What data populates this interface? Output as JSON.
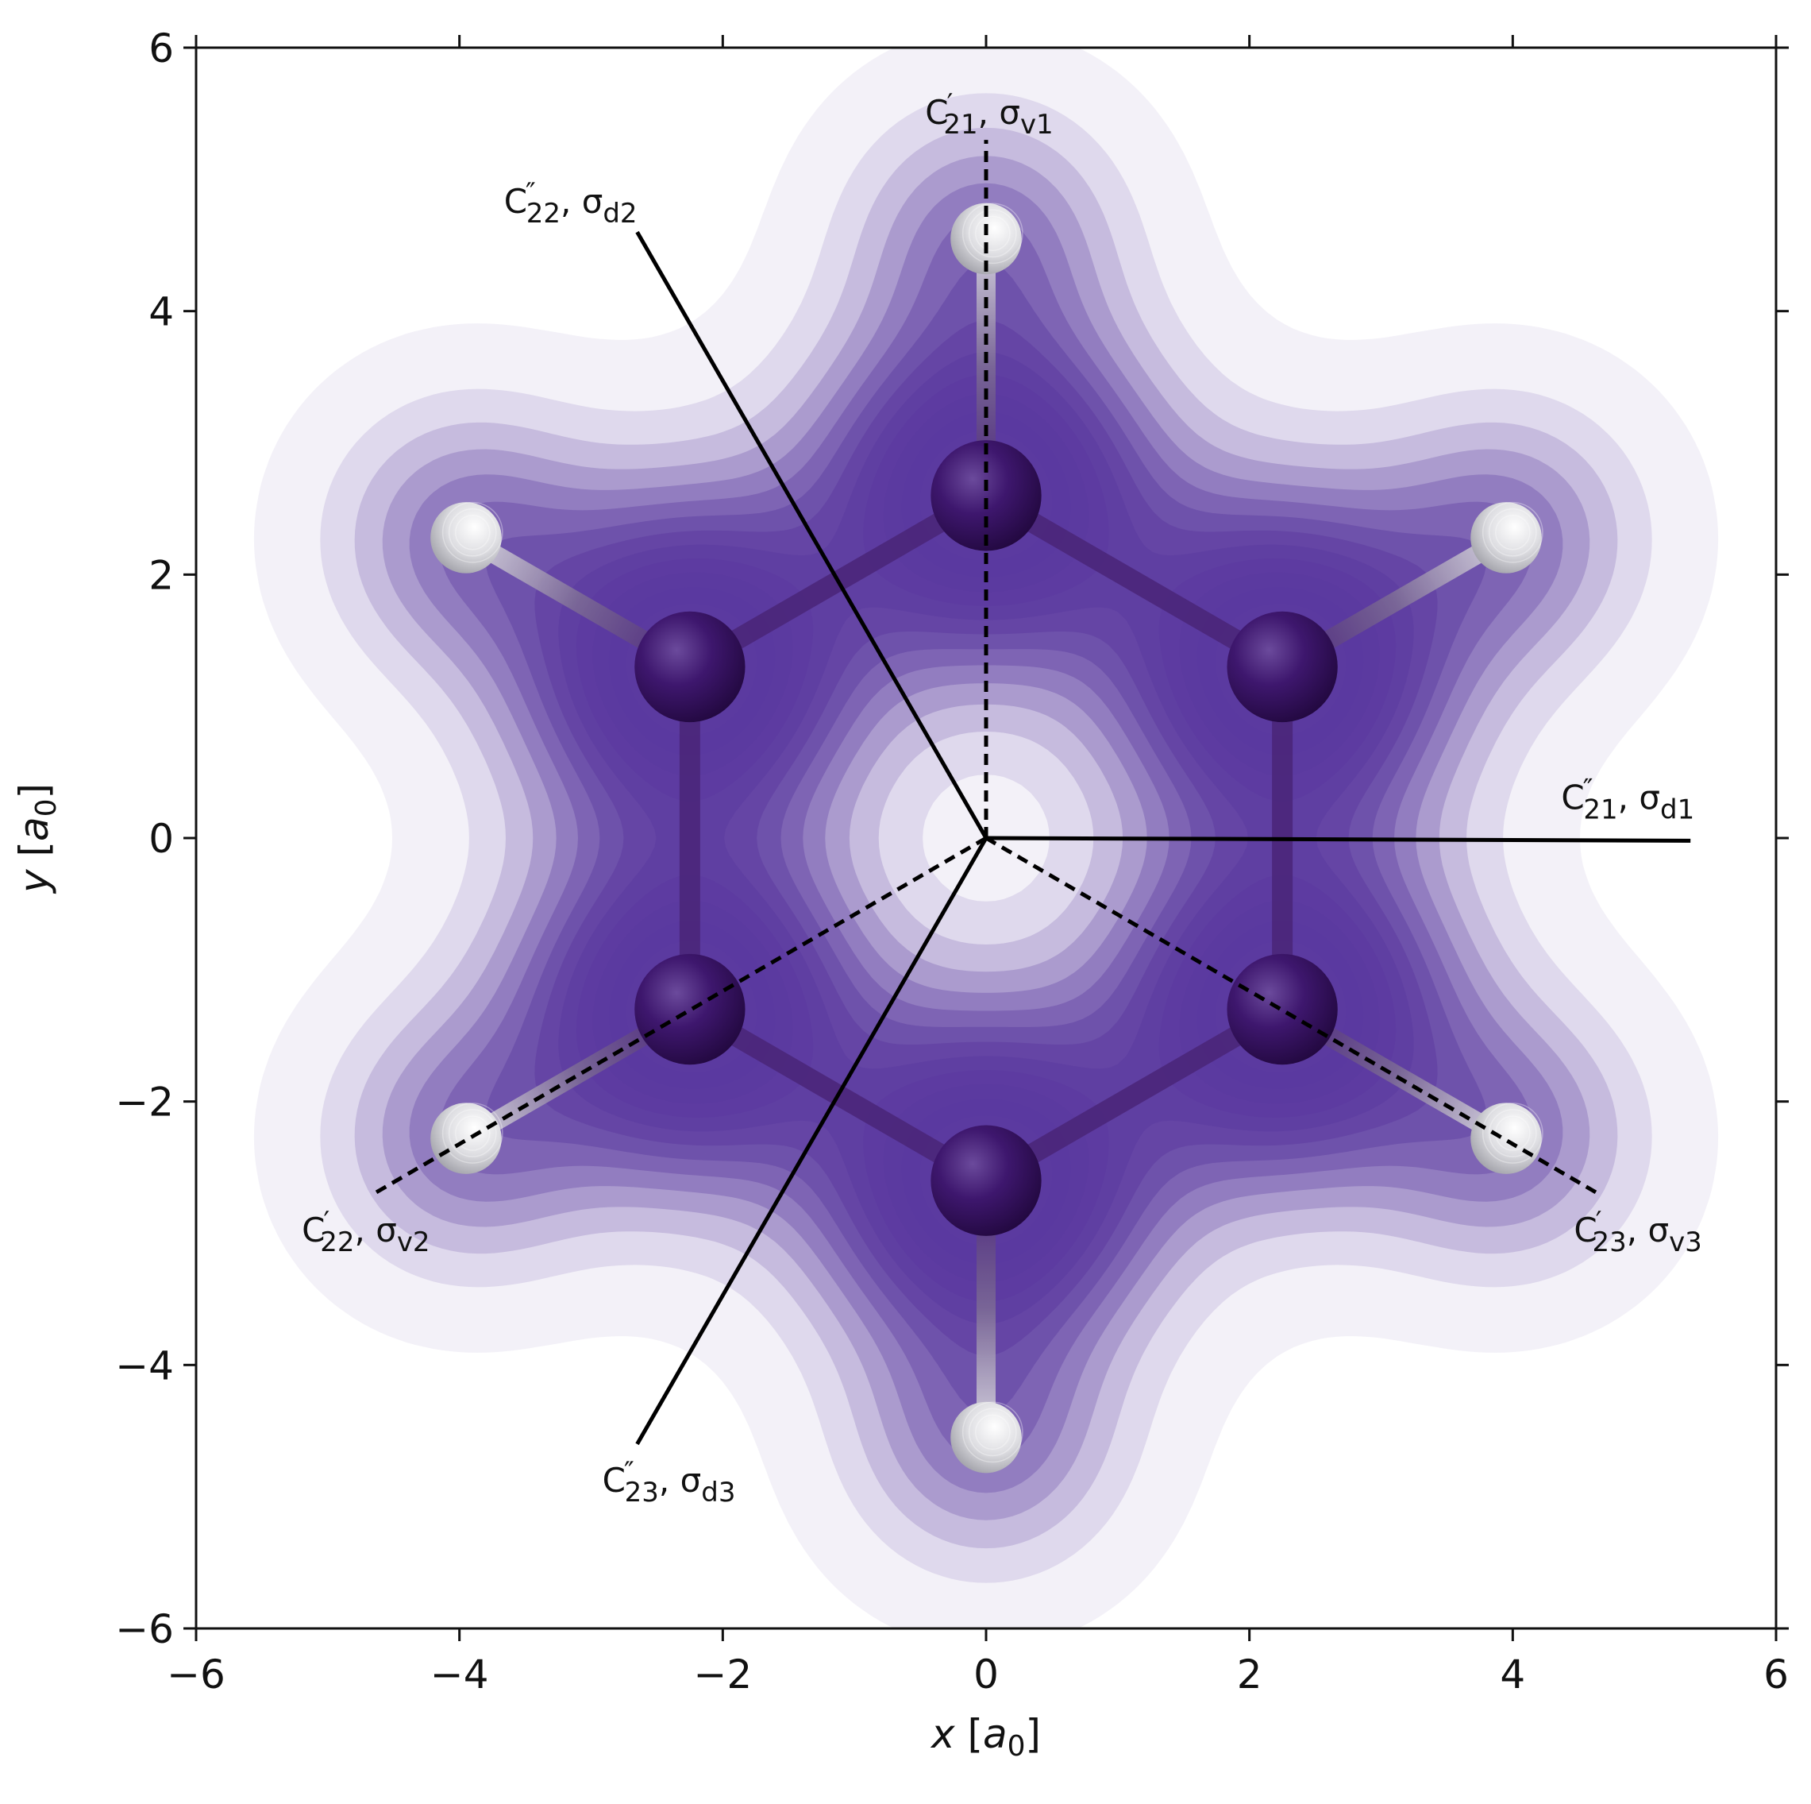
{
  "chart_data": {
    "type": "heatmap",
    "xlabel": {
      "var": "x",
      "unit_base": "a",
      "unit_sub": "0"
    },
    "ylabel": {
      "var": "y",
      "unit_base": "a",
      "unit_sub": "0"
    },
    "xlim": [
      -6,
      6
    ],
    "ylim": [
      -6,
      6
    ],
    "xticks": [
      -6,
      -4,
      -2,
      0,
      2,
      4,
      6
    ],
    "yticks": [
      -6,
      -4,
      -2,
      0,
      2,
      4,
      6
    ],
    "xtick_labels": [
      "−6",
      "−4",
      "−2",
      "0",
      "2",
      "4",
      "6"
    ],
    "ytick_labels": [
      "−6",
      "−4",
      "−2",
      "0",
      "2",
      "4",
      "6"
    ],
    "grid": false,
    "colormap": {
      "low": "#ffffff",
      "high": "#4a1c80"
    },
    "molecule": {
      "carbon_atoms": [
        {
          "x": 0.0,
          "y": 2.6
        },
        {
          "x": 2.25,
          "y": 1.3
        },
        {
          "x": 2.25,
          "y": -1.3
        },
        {
          "x": 0.0,
          "y": -2.6
        },
        {
          "x": -2.25,
          "y": -1.3
        },
        {
          "x": -2.25,
          "y": 1.3
        }
      ],
      "hydrogen_atoms": [
        {
          "x": 0.0,
          "y": 4.55
        },
        {
          "x": 3.95,
          "y": 2.28
        },
        {
          "x": 3.95,
          "y": -2.28
        },
        {
          "x": 0.0,
          "y": -4.55
        },
        {
          "x": -3.95,
          "y": -2.28
        },
        {
          "x": -3.95,
          "y": 2.28
        }
      ],
      "carbon_color": "#3a1468",
      "hydrogen_color": "#d8d8dc"
    },
    "symmetry_elements": [
      {
        "axis": "C",
        "mark": "′",
        "sub": "21",
        "plane": "σ",
        "plane_sub": "v1",
        "style": "dashed",
        "end": {
          "x": 0.0,
          "y": 5.3
        }
      },
      {
        "axis": "C",
        "mark": "″",
        "sub": "22",
        "plane": "σ",
        "plane_sub": "d2",
        "style": "solid",
        "end": {
          "x": -2.65,
          "y": 4.6
        }
      },
      {
        "axis": "C",
        "mark": "″",
        "sub": "21",
        "plane": "σ",
        "plane_sub": "d1",
        "style": "solid",
        "end": {
          "x": 5.35,
          "y": -0.02
        }
      },
      {
        "axis": "C",
        "mark": "′",
        "sub": "22",
        "plane": "σ",
        "plane_sub": "v2",
        "style": "dashed",
        "end": {
          "x": -4.65,
          "y": -2.7
        }
      },
      {
        "axis": "C",
        "mark": "′",
        "sub": "23",
        "plane": "σ",
        "plane_sub": "v3",
        "style": "dashed",
        "end": {
          "x": 4.65,
          "y": -2.7
        }
      },
      {
        "axis": "C",
        "mark": "″",
        "sub": "23",
        "plane": "σ",
        "plane_sub": "d3",
        "style": "solid",
        "end": {
          "x": -2.65,
          "y": -4.6
        }
      }
    ]
  },
  "colors": {
    "axis": "#111111",
    "line": "#000000"
  }
}
